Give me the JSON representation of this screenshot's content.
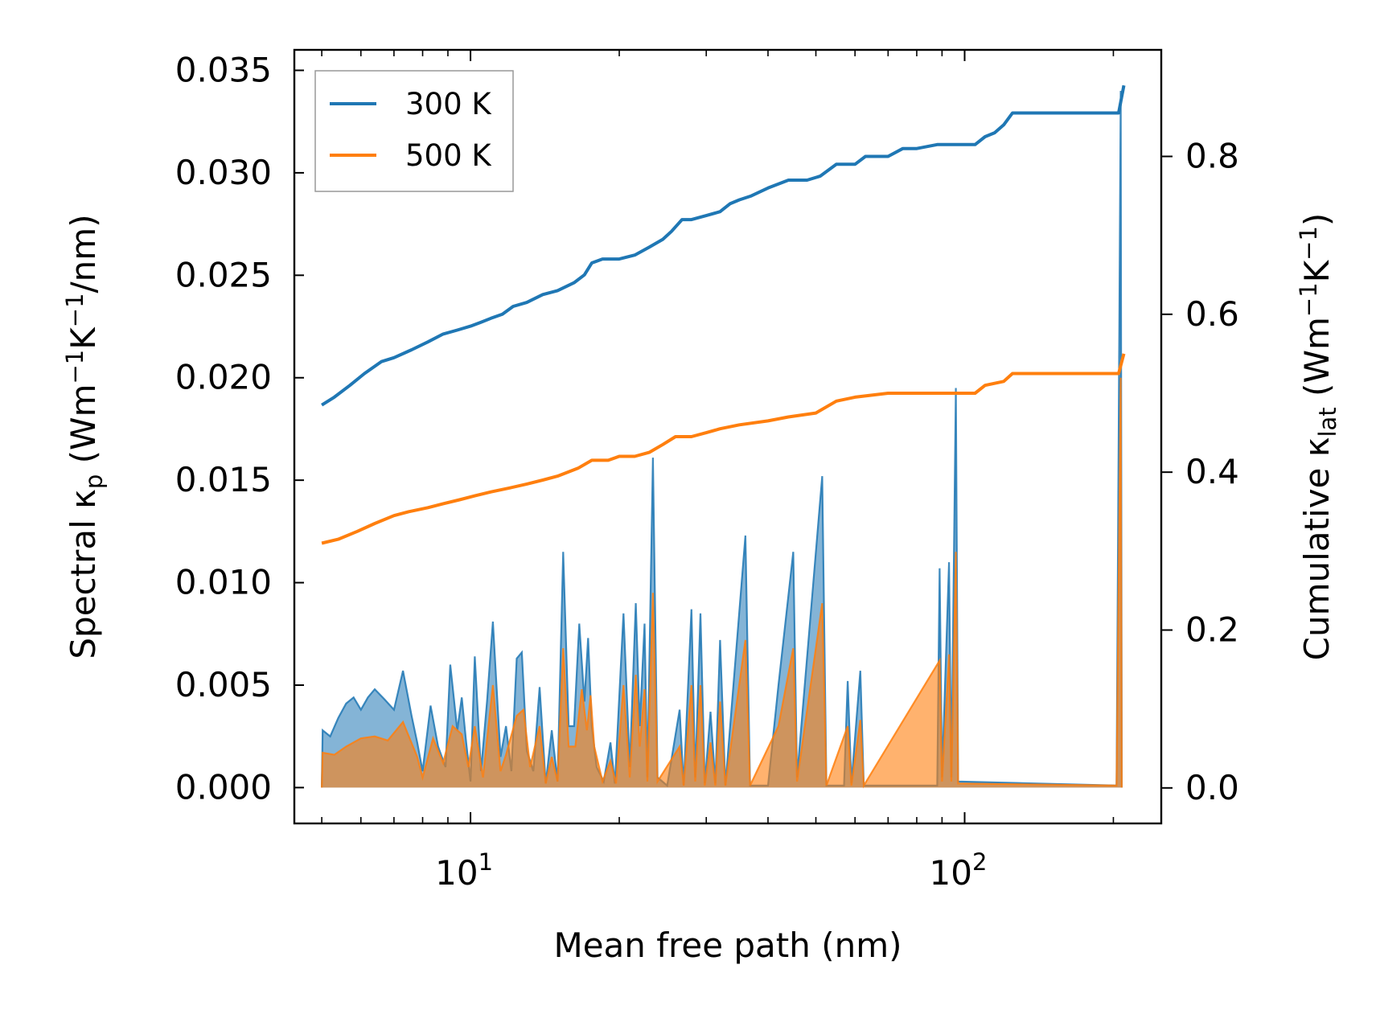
{
  "chart_data": {
    "type": "line",
    "xscale": "log",
    "xlabel": "Mean free path (nm)",
    "ylabel_left": {
      "main": "Spectral κ",
      "sub": "p",
      "unit_open": " (Wm",
      "sup1": "−1",
      "mid": "K",
      "sup2": "−1",
      "unit_close": "/nm)"
    },
    "ylabel_right": {
      "main": "Cumulative κ",
      "sub": "lat",
      "unit_open": " (Wm",
      "sup1": "−1",
      "mid": "K",
      "sup2": "−1",
      "unit_close": ")"
    },
    "xlim": [
      4.4,
      250
    ],
    "ylim_left": [
      -0.00175,
      0.036
    ],
    "ylim_right": [
      -0.045,
      0.935
    ],
    "x_ticks": [
      {
        "value": 10,
        "base": "10",
        "exp": "1"
      },
      {
        "value": 100,
        "base": "10",
        "exp": "2"
      }
    ],
    "y_left_ticks": [
      {
        "value": 0.0,
        "label": "0.000"
      },
      {
        "value": 0.005,
        "label": "0.005"
      },
      {
        "value": 0.01,
        "label": "0.010"
      },
      {
        "value": 0.015,
        "label": "0.015"
      },
      {
        "value": 0.02,
        "label": "0.020"
      },
      {
        "value": 0.025,
        "label": "0.025"
      },
      {
        "value": 0.03,
        "label": "0.030"
      },
      {
        "value": 0.035,
        "label": "0.035"
      }
    ],
    "y_right_ticks": [
      {
        "value": 0.0,
        "label": "0.0"
      },
      {
        "value": 0.2,
        "label": "0.2"
      },
      {
        "value": 0.4,
        "label": "0.4"
      },
      {
        "value": 0.6,
        "label": "0.6"
      },
      {
        "value": 0.8,
        "label": "0.8"
      }
    ],
    "legend_position": "top-left",
    "series": [
      {
        "name": "300 K",
        "color": "#1f77b4",
        "cumulative": [
          [
            5.0,
            0.485
          ],
          [
            5.3,
            0.495
          ],
          [
            5.7,
            0.51
          ],
          [
            6.1,
            0.525
          ],
          [
            6.6,
            0.54
          ],
          [
            7.0,
            0.545
          ],
          [
            7.6,
            0.555
          ],
          [
            8.2,
            0.565
          ],
          [
            8.8,
            0.575
          ],
          [
            9.4,
            0.58
          ],
          [
            10.0,
            0.585
          ],
          [
            10.5,
            0.59
          ],
          [
            11.0,
            0.595
          ],
          [
            11.6,
            0.6
          ],
          [
            12.2,
            0.61
          ],
          [
            13.0,
            0.615
          ],
          [
            14.0,
            0.625
          ],
          [
            15.0,
            0.63
          ],
          [
            16.2,
            0.64
          ],
          [
            17.0,
            0.65
          ],
          [
            17.6,
            0.665
          ],
          [
            18.5,
            0.67
          ],
          [
            20.0,
            0.67
          ],
          [
            21.5,
            0.675
          ],
          [
            23.0,
            0.685
          ],
          [
            24.5,
            0.695
          ],
          [
            25.5,
            0.705
          ],
          [
            26.8,
            0.72
          ],
          [
            28.0,
            0.72
          ],
          [
            30.0,
            0.725
          ],
          [
            32.0,
            0.73
          ],
          [
            33.5,
            0.74
          ],
          [
            35.0,
            0.745
          ],
          [
            37.0,
            0.75
          ],
          [
            40.0,
            0.76
          ],
          [
            44.0,
            0.77
          ],
          [
            48.0,
            0.77
          ],
          [
            51.0,
            0.775
          ],
          [
            55.0,
            0.79
          ],
          [
            60.0,
            0.79
          ],
          [
            63.0,
            0.8
          ],
          [
            70.0,
            0.8
          ],
          [
            75.0,
            0.81
          ],
          [
            80.0,
            0.81
          ],
          [
            88.0,
            0.815
          ],
          [
            105.0,
            0.815
          ],
          [
            110.0,
            0.825
          ],
          [
            115.0,
            0.83
          ],
          [
            120.0,
            0.84
          ],
          [
            125.0,
            0.855
          ],
          [
            150.0,
            0.855
          ],
          [
            170.0,
            0.855
          ],
          [
            205.0,
            0.855
          ],
          [
            210.0,
            0.89
          ]
        ],
        "spectral": [
          [
            5.0,
            0.0
          ],
          [
            5.02,
            0.0028
          ],
          [
            5.2,
            0.0025
          ],
          [
            5.4,
            0.0034
          ],
          [
            5.6,
            0.0041
          ],
          [
            5.8,
            0.0044
          ],
          [
            6.0,
            0.0038
          ],
          [
            6.2,
            0.0044
          ],
          [
            6.4,
            0.0048
          ],
          [
            6.7,
            0.0043
          ],
          [
            7.0,
            0.0038
          ],
          [
            7.3,
            0.0057
          ],
          [
            7.6,
            0.0035
          ],
          [
            7.8,
            0.0022
          ],
          [
            8.0,
            0.0008
          ],
          [
            8.3,
            0.004
          ],
          [
            8.6,
            0.002
          ],
          [
            8.9,
            0.001
          ],
          [
            9.1,
            0.006
          ],
          [
            9.4,
            0.0028
          ],
          [
            9.6,
            0.0044
          ],
          [
            9.8,
            0.0022
          ],
          [
            10.0,
            0.0003
          ],
          [
            10.2,
            0.0064
          ],
          [
            10.5,
            0.0008
          ],
          [
            10.8,
            0.0042
          ],
          [
            11.1,
            0.0081
          ],
          [
            11.5,
            0.0015
          ],
          [
            11.8,
            0.003
          ],
          [
            12.1,
            0.0008
          ],
          [
            12.4,
            0.0063
          ],
          [
            12.7,
            0.0066
          ],
          [
            13.0,
            0.0018
          ],
          [
            13.4,
            0.0008
          ],
          [
            13.8,
            0.0049
          ],
          [
            14.2,
            0.0002
          ],
          [
            14.6,
            0.0028
          ],
          [
            15.0,
            0.0003
          ],
          [
            15.4,
            0.0115
          ],
          [
            15.8,
            0.003
          ],
          [
            16.2,
            0.003
          ],
          [
            16.6,
            0.008
          ],
          [
            17.0,
            0.0042
          ],
          [
            17.3,
            0.0073
          ],
          [
            17.6,
            0.003
          ],
          [
            18.0,
            0.001
          ],
          [
            18.6,
            0.0003
          ],
          [
            19.2,
            0.0022
          ],
          [
            19.6,
            0.0002
          ],
          [
            20.4,
            0.0085
          ],
          [
            21.0,
            0.001
          ],
          [
            21.6,
            0.009
          ],
          [
            22.0,
            0.003
          ],
          [
            22.5,
            0.008
          ],
          [
            22.8,
            0.0005
          ],
          [
            23.4,
            0.0161
          ],
          [
            23.9,
            0.0005
          ],
          [
            25.0,
            0.0001
          ],
          [
            26.5,
            0.0038
          ],
          [
            27.0,
            0.0001
          ],
          [
            28.0,
            0.0087
          ],
          [
            28.5,
            0.0005
          ],
          [
            29.2,
            0.0085
          ],
          [
            29.8,
            0.0002
          ],
          [
            30.6,
            0.0037
          ],
          [
            31.3,
            0.0002
          ],
          [
            32.0,
            0.0072
          ],
          [
            32.8,
            0.0001
          ],
          [
            36.0,
            0.0123
          ],
          [
            36.8,
            0.0001
          ],
          [
            40.0,
            0.0001
          ],
          [
            42.0,
            0.005
          ],
          [
            45.0,
            0.0115
          ],
          [
            45.8,
            0.0005
          ],
          [
            51.5,
            0.0152
          ],
          [
            52.5,
            0.0001
          ],
          [
            57.0,
            0.0001
          ],
          [
            58.0,
            0.0052
          ],
          [
            59.0,
            0.0002
          ],
          [
            61.5,
            0.0057
          ],
          [
            62.5,
            0.0001
          ],
          [
            88.0,
            0.0001
          ],
          [
            89.0,
            0.0107
          ],
          [
            90.0,
            0.0005
          ],
          [
            93.0,
            0.011
          ],
          [
            94.0,
            0.0005
          ],
          [
            96.0,
            0.0195
          ],
          [
            97.0,
            0.0003
          ],
          [
            203.0,
            0.0001
          ],
          [
            207.0,
            0.034
          ],
          [
            208.0,
            0.0
          ]
        ]
      },
      {
        "name": "500 K",
        "color": "#ff7f0e",
        "cumulative": [
          [
            5.0,
            0.31
          ],
          [
            5.4,
            0.315
          ],
          [
            5.9,
            0.325
          ],
          [
            6.4,
            0.335
          ],
          [
            7.0,
            0.345
          ],
          [
            7.5,
            0.35
          ],
          [
            8.2,
            0.355
          ],
          [
            8.8,
            0.36
          ],
          [
            9.5,
            0.365
          ],
          [
            10.2,
            0.37
          ],
          [
            11.0,
            0.375
          ],
          [
            12.0,
            0.38
          ],
          [
            13.0,
            0.385
          ],
          [
            14.0,
            0.39
          ],
          [
            15.0,
            0.395
          ],
          [
            16.5,
            0.405
          ],
          [
            17.6,
            0.415
          ],
          [
            19.0,
            0.415
          ],
          [
            20.0,
            0.42
          ],
          [
            21.5,
            0.42
          ],
          [
            23.0,
            0.425
          ],
          [
            24.5,
            0.435
          ],
          [
            26.0,
            0.445
          ],
          [
            28.0,
            0.445
          ],
          [
            30.0,
            0.45
          ],
          [
            32.0,
            0.455
          ],
          [
            35.0,
            0.46
          ],
          [
            40.0,
            0.465
          ],
          [
            44.0,
            0.47
          ],
          [
            50.0,
            0.475
          ],
          [
            55.0,
            0.49
          ],
          [
            60.0,
            0.495
          ],
          [
            70.0,
            0.5
          ],
          [
            90.0,
            0.5
          ],
          [
            105.0,
            0.5
          ],
          [
            110.0,
            0.51
          ],
          [
            120.0,
            0.515
          ],
          [
            125.0,
            0.525
          ],
          [
            150.0,
            0.525
          ],
          [
            180.0,
            0.525
          ],
          [
            205.0,
            0.525
          ],
          [
            210.0,
            0.55
          ]
        ],
        "spectral": [
          [
            5.0,
            0.0
          ],
          [
            5.02,
            0.0017
          ],
          [
            5.3,
            0.0016
          ],
          [
            5.6,
            0.002
          ],
          [
            6.0,
            0.0024
          ],
          [
            6.4,
            0.0025
          ],
          [
            6.8,
            0.0023
          ],
          [
            7.3,
            0.0032
          ],
          [
            7.8,
            0.0015
          ],
          [
            8.0,
            0.0005
          ],
          [
            8.4,
            0.0024
          ],
          [
            8.8,
            0.0012
          ],
          [
            9.2,
            0.003
          ],
          [
            9.6,
            0.0026
          ],
          [
            9.9,
            0.001
          ],
          [
            10.2,
            0.003
          ],
          [
            10.6,
            0.0005
          ],
          [
            11.1,
            0.005
          ],
          [
            11.5,
            0.0008
          ],
          [
            11.8,
            0.0016
          ],
          [
            12.4,
            0.0035
          ],
          [
            12.8,
            0.0038
          ],
          [
            13.2,
            0.001
          ],
          [
            13.8,
            0.003
          ],
          [
            14.2,
            0.0002
          ],
          [
            14.6,
            0.0015
          ],
          [
            15.0,
            0.0003
          ],
          [
            15.4,
            0.0068
          ],
          [
            15.8,
            0.002
          ],
          [
            16.3,
            0.002
          ],
          [
            16.8,
            0.0048
          ],
          [
            17.2,
            0.0028
          ],
          [
            17.5,
            0.0045
          ],
          [
            17.8,
            0.002
          ],
          [
            18.5,
            0.0003
          ],
          [
            19.2,
            0.0013
          ],
          [
            19.7,
            0.0002
          ],
          [
            20.4,
            0.005
          ],
          [
            21.0,
            0.0005
          ],
          [
            21.6,
            0.0055
          ],
          [
            22.0,
            0.002
          ],
          [
            22.5,
            0.0048
          ],
          [
            22.8,
            0.0003
          ],
          [
            23.4,
            0.0095
          ],
          [
            23.9,
            0.0003
          ],
          [
            26.5,
            0.002
          ],
          [
            27.0,
            0.0001
          ],
          [
            28.0,
            0.005
          ],
          [
            28.5,
            0.0003
          ],
          [
            29.2,
            0.005
          ],
          [
            29.8,
            0.0001
          ],
          [
            30.6,
            0.0022
          ],
          [
            31.3,
            0.0001
          ],
          [
            32.0,
            0.0042
          ],
          [
            32.8,
            0.0001
          ],
          [
            36.0,
            0.0072
          ],
          [
            36.8,
            0.0001
          ],
          [
            42.0,
            0.003
          ],
          [
            45.0,
            0.0068
          ],
          [
            45.8,
            0.0003
          ],
          [
            51.5,
            0.009
          ],
          [
            52.5,
            0.0001
          ],
          [
            58.0,
            0.003
          ],
          [
            59.0,
            0.0001
          ],
          [
            61.5,
            0.0033
          ],
          [
            62.5,
            0.0001
          ],
          [
            89.0,
            0.0062
          ],
          [
            90.0,
            0.0003
          ],
          [
            93.0,
            0.0065
          ],
          [
            94.0,
            0.0003
          ],
          [
            96.0,
            0.0115
          ],
          [
            97.0,
            0.0002
          ],
          [
            203.0,
            0.0001
          ],
          [
            207.0,
            0.02
          ],
          [
            208.0,
            0.0
          ]
        ]
      }
    ]
  }
}
